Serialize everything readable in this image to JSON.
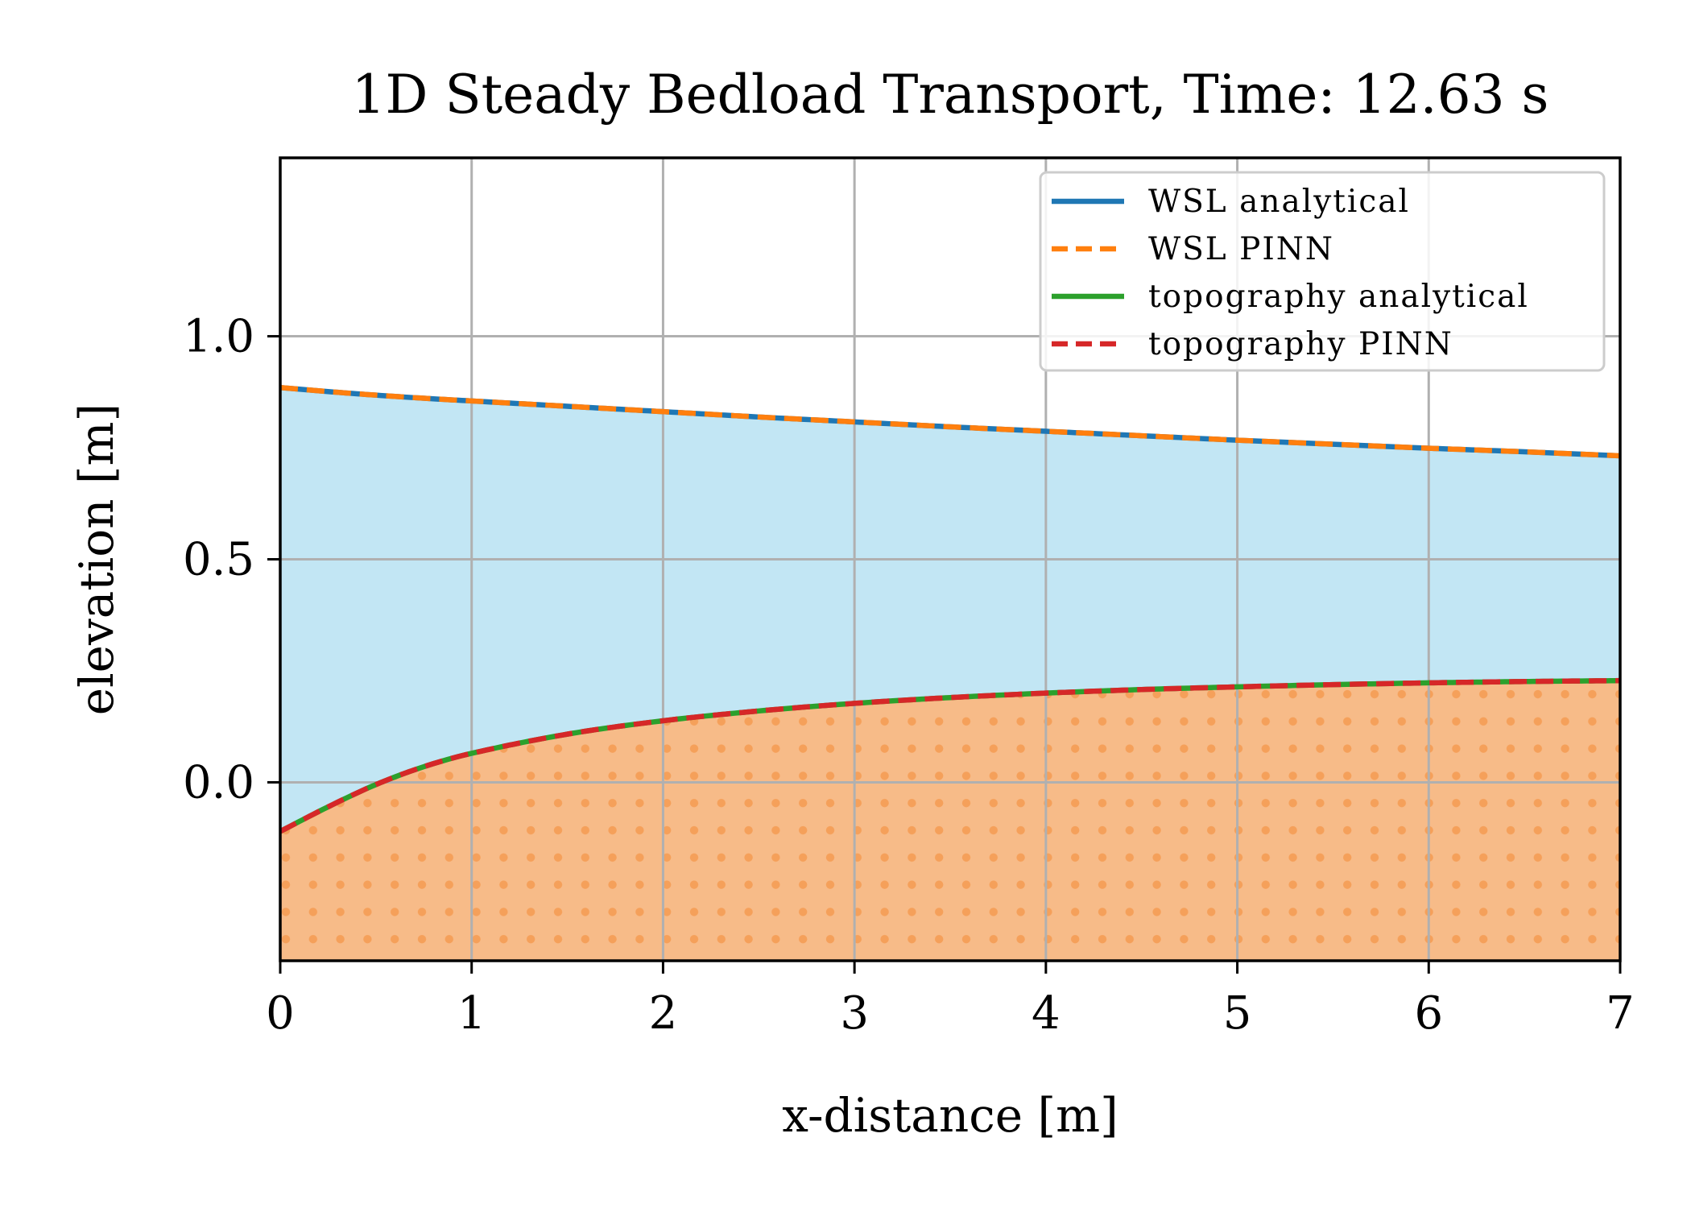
{
  "chart_data": {
    "type": "area",
    "title": "1D Steady Bedload Transport, Time: 12.63 s",
    "xlabel": "x-distance [m]",
    "ylabel": "elevation [m]",
    "xlim": [
      0,
      7
    ],
    "ylim": [
      -0.4,
      1.4
    ],
    "xticks": [
      0,
      1,
      2,
      3,
      4,
      5,
      6,
      7
    ],
    "xtick_labels": [
      "0",
      "1",
      "2",
      "3",
      "4",
      "5",
      "6",
      "7"
    ],
    "yticks": [
      0.0,
      0.5,
      1.0
    ],
    "ytick_labels": [
      "0.0",
      "0.5",
      "1.0"
    ],
    "grid": true,
    "legend_position": "top-right",
    "x": [
      0,
      0.25,
      0.5,
      0.75,
      1,
      1.5,
      2,
      2.5,
      3,
      3.5,
      4,
      4.5,
      5,
      5.5,
      6,
      6.5,
      7
    ],
    "series": [
      {
        "name": "WSL analytical",
        "style": "solid",
        "color": "#1f77b4",
        "values": [
          0.885,
          0.876,
          0.868,
          0.861,
          0.855,
          0.843,
          0.831,
          0.819,
          0.808,
          0.797,
          0.787,
          0.777,
          0.767,
          0.758,
          0.749,
          0.741,
          0.732
        ]
      },
      {
        "name": "WSL PINN",
        "style": "dashed",
        "color": "#ff7f0e",
        "values": [
          0.885,
          0.876,
          0.868,
          0.861,
          0.855,
          0.843,
          0.831,
          0.819,
          0.808,
          0.797,
          0.787,
          0.777,
          0.767,
          0.758,
          0.749,
          0.741,
          0.732
        ]
      },
      {
        "name": "topography analytical",
        "style": "solid",
        "color": "#2ca02c",
        "values": [
          -0.11,
          -0.055,
          -0.005,
          0.035,
          0.065,
          0.108,
          0.138,
          0.16,
          0.177,
          0.19,
          0.2,
          0.208,
          0.214,
          0.219,
          0.223,
          0.226,
          0.228
        ]
      },
      {
        "name": "topography PINN",
        "style": "dashed",
        "color": "#d62728",
        "values": [
          -0.11,
          -0.055,
          -0.005,
          0.035,
          0.065,
          0.108,
          0.138,
          0.16,
          0.177,
          0.19,
          0.2,
          0.208,
          0.214,
          0.219,
          0.223,
          0.226,
          0.228
        ]
      }
    ],
    "fills": {
      "water_color": "#c2e6f4",
      "sediment_color": "#f7bb88",
      "sediment_dot_color": "#f5a05a"
    }
  }
}
